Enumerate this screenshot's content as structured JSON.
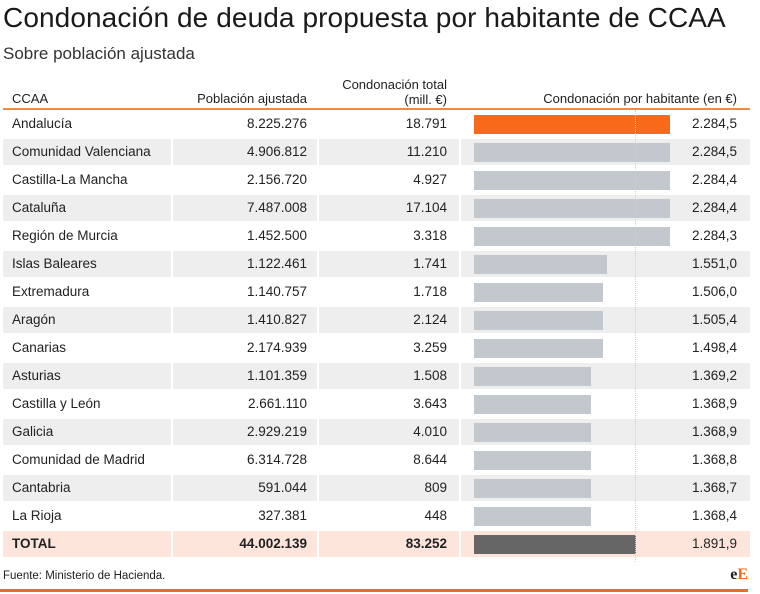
{
  "header": {
    "title": "Condonación de deuda propuesta por habitante de CCAA",
    "subtitle": "Sobre población ajustada"
  },
  "table": {
    "columns": {
      "ccaa": "CCAA",
      "poblacion": "Población ajustada",
      "total_line1": "Condonación total",
      "total_line2": "(mill. €)",
      "habitante": "Condonación por habitante (en €)"
    },
    "rows": [
      {
        "ccaa": "Andalucía",
        "poblacion": "8.225.276",
        "total": "18.791",
        "habitante": "2.284,5",
        "value": 2284.5,
        "highlight": true
      },
      {
        "ccaa": "Comunidad Valenciana",
        "poblacion": "4.906.812",
        "total": "11.210",
        "habitante": "2.284,5",
        "value": 2284.5
      },
      {
        "ccaa": "Castilla-La Mancha",
        "poblacion": "2.156.720",
        "total": "4.927",
        "habitante": "2.284,4",
        "value": 2284.4
      },
      {
        "ccaa": "Cataluña",
        "poblacion": "7.487.008",
        "total": "17.104",
        "habitante": "2.284,4",
        "value": 2284.4
      },
      {
        "ccaa": "Región de Murcia",
        "poblacion": "1.452.500",
        "total": "3.318",
        "habitante": "2.284,3",
        "value": 2284.3
      },
      {
        "ccaa": "Islas Baleares",
        "poblacion": "1.122.461",
        "total": "1.741",
        "habitante": "1.551,0",
        "value": 1551.0
      },
      {
        "ccaa": "Extremadura",
        "poblacion": "1.140.757",
        "total": "1.718",
        "habitante": "1.506,0",
        "value": 1506.0
      },
      {
        "ccaa": "Aragón",
        "poblacion": "1.410.827",
        "total": "2.124",
        "habitante": "1.505,4",
        "value": 1505.4
      },
      {
        "ccaa": "Canarias",
        "poblacion": "2.174.939",
        "total": "3.259",
        "habitante": "1.498,4",
        "value": 1498.4
      },
      {
        "ccaa": "Asturias",
        "poblacion": "1.101.359",
        "total": "1.508",
        "habitante": "1.369,2",
        "value": 1369.2
      },
      {
        "ccaa": "Castilla y León",
        "poblacion": "2.661.110",
        "total": "3.643",
        "habitante": "1.368,9",
        "value": 1368.9
      },
      {
        "ccaa": "Galicia",
        "poblacion": "2.929.219",
        "total": "4.010",
        "habitante": "1.368,9",
        "value": 1368.9
      },
      {
        "ccaa": "Comunidad de Madrid",
        "poblacion": "6.314.728",
        "total": "8.644",
        "habitante": "1.368,8",
        "value": 1368.8
      },
      {
        "ccaa": "Cantabria",
        "poblacion": "591.044",
        "total": "809",
        "habitante": "1.368,7",
        "value": 1368.7
      },
      {
        "ccaa": "La Rioja",
        "poblacion": "327.381",
        "total": "448",
        "habitante": "1.368,4",
        "value": 1368.4
      }
    ],
    "total_row": {
      "ccaa": "TOTAL",
      "poblacion": "44.002.139",
      "total": "83.252",
      "habitante": "1.891,9",
      "value": 1891.9
    }
  },
  "colors": {
    "accent": "#f86a1a",
    "bar": "#c3c8cf",
    "total_bar": "#666666",
    "total_row_bg": "#fde5dc",
    "alt_row_bg": "#eeeeee"
  },
  "footer": {
    "source": "Fuente: Ministerio de Hacienda.",
    "logo_part1": "e",
    "logo_part2": "E"
  },
  "chart_data": {
    "type": "bar",
    "orientation": "horizontal",
    "title": "Condonación de deuda propuesta por habitante de CCAA",
    "subtitle": "Sobre población ajustada",
    "xlabel": "Condonación por habitante (en €)",
    "categories": [
      "Andalucía",
      "Comunidad Valenciana",
      "Castilla-La Mancha",
      "Cataluña",
      "Región de Murcia",
      "Islas Baleares",
      "Extremadura",
      "Aragón",
      "Canarias",
      "Asturias",
      "Castilla y León",
      "Galicia",
      "Comunidad de Madrid",
      "Cantabria",
      "La Rioja",
      "TOTAL"
    ],
    "values": [
      2284.5,
      2284.5,
      2284.4,
      2284.4,
      2284.3,
      1551.0,
      1506.0,
      1505.4,
      1498.4,
      1369.2,
      1368.9,
      1368.9,
      1368.8,
      1368.7,
      1368.4,
      1891.9
    ],
    "xlim": [
      0,
      2284.5
    ],
    "gridline_at": 1891.9,
    "legend": "none",
    "source": "Fuente: Ministerio de Hacienda."
  }
}
